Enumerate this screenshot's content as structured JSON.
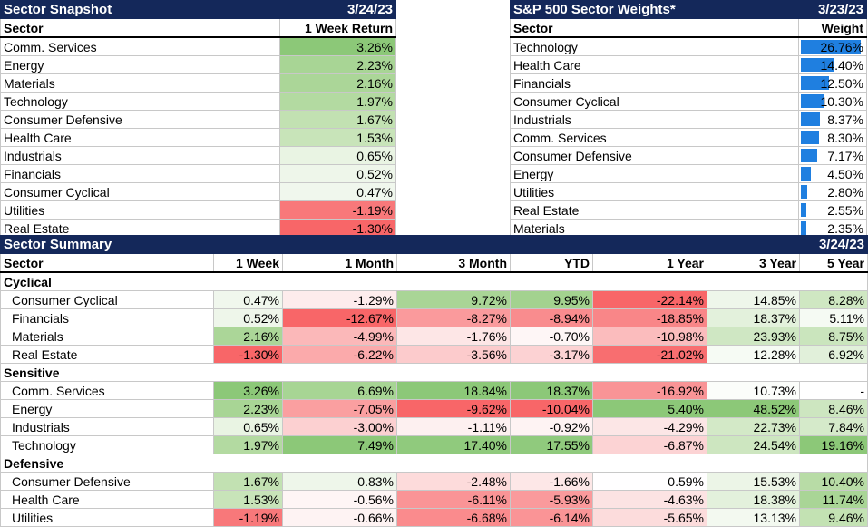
{
  "snapshot": {
    "title": "Sector Snapshot",
    "date": "3/24/23",
    "col_sector": "Sector",
    "col_return": "1 Week Return",
    "rows": [
      {
        "name": "Comm. Services",
        "value": "3.26%",
        "color": "#8cc878"
      },
      {
        "name": "Energy",
        "value": "2.23%",
        "color": "#a8d595"
      },
      {
        "name": "Materials",
        "value": "2.16%",
        "color": "#abd698"
      },
      {
        "name": "Technology",
        "value": "1.97%",
        "color": "#b3daa1"
      },
      {
        "name": "Consumer Defensive",
        "value": "1.67%",
        "color": "#c2e1b2"
      },
      {
        "name": "Health Care",
        "value": "1.53%",
        "color": "#c8e4b9"
      },
      {
        "name": "Industrials",
        "value": "0.65%",
        "color": "#e9f4e3"
      },
      {
        "name": "Financials",
        "value": "0.52%",
        "color": "#eef6ea"
      },
      {
        "name": "Consumer Cyclical",
        "value": "0.47%",
        "color": "#f0f7ed"
      },
      {
        "name": "Utilities",
        "value": "-1.19%",
        "color": "#f8787a"
      },
      {
        "name": "Real Estate",
        "value": "-1.30%",
        "color": "#f86668"
      }
    ]
  },
  "weights": {
    "title": "S&P 500 Sector Weights*",
    "date": "3/23/23",
    "col_sector": "Sector",
    "col_weight": "Weight",
    "bar_color": "#1f7fe0",
    "rows": [
      {
        "name": "Technology",
        "value": "26.76%",
        "pct": 26.76
      },
      {
        "name": "Health Care",
        "value": "14.40%",
        "pct": 14.4
      },
      {
        "name": "Financials",
        "value": "12.50%",
        "pct": 12.5
      },
      {
        "name": "Consumer Cyclical",
        "value": "10.30%",
        "pct": 10.3
      },
      {
        "name": "Industrials",
        "value": "8.37%",
        "pct": 8.37
      },
      {
        "name": "Comm. Services",
        "value": "8.30%",
        "pct": 8.3
      },
      {
        "name": "Consumer Defensive",
        "value": "7.17%",
        "pct": 7.17
      },
      {
        "name": "Energy",
        "value": "4.50%",
        "pct": 4.5
      },
      {
        "name": "Utilities",
        "value": "2.80%",
        "pct": 2.8
      },
      {
        "name": "Real Estate",
        "value": "2.55%",
        "pct": 2.55
      },
      {
        "name": "Materials",
        "value": "2.35%",
        "pct": 2.35
      }
    ]
  },
  "summary": {
    "title": "Sector Summary",
    "date": "3/24/23",
    "headers": [
      "Sector",
      "1 Week",
      "1 Month",
      "3 Month",
      "YTD",
      "1 Year",
      "3 Year",
      "5 Year"
    ],
    "groups": [
      {
        "name": "Cyclical",
        "rows": [
          {
            "name": "Consumer Cyclical",
            "cells": [
              {
                "v": "0.47%",
                "c": "#f0f7ed"
              },
              {
                "v": "-1.29%",
                "c": "#fdecec"
              },
              {
                "v": "9.72%",
                "c": "#a9d596"
              },
              {
                "v": "9.95%",
                "c": "#a3d28f"
              },
              {
                "v": "-22.14%",
                "c": "#f86668"
              },
              {
                "v": "14.85%",
                "c": "#eef6ea"
              },
              {
                "v": "8.28%",
                "c": "#cfe7c2"
              }
            ]
          },
          {
            "name": "Financials",
            "cells": [
              {
                "v": "0.52%",
                "c": "#eef6ea"
              },
              {
                "v": "-12.67%",
                "c": "#f86668"
              },
              {
                "v": "-8.27%",
                "c": "#fa9a9c"
              },
              {
                "v": "-8.94%",
                "c": "#f98c8e"
              },
              {
                "v": "-18.85%",
                "c": "#f98688"
              },
              {
                "v": "18.37%",
                "c": "#e3f1dc"
              },
              {
                "v": "5.11%",
                "c": "#f5faf3"
              }
            ]
          },
          {
            "name": "Materials",
            "cells": [
              {
                "v": "2.16%",
                "c": "#abd698"
              },
              {
                "v": "-4.99%",
                "c": "#fbb8b9"
              },
              {
                "v": "-1.76%",
                "c": "#fde6e6"
              },
              {
                "v": "-0.70%",
                "c": "#fef6f6"
              },
              {
                "v": "-10.98%",
                "c": "#fbbcbd"
              },
              {
                "v": "23.93%",
                "c": "#cfe7c3"
              },
              {
                "v": "8.75%",
                "c": "#cae5bd"
              }
            ]
          },
          {
            "name": "Real Estate",
            "cells": [
              {
                "v": "-1.30%",
                "c": "#f86668"
              },
              {
                "v": "-6.22%",
                "c": "#fbaaab"
              },
              {
                "v": "-3.56%",
                "c": "#fccbcc"
              },
              {
                "v": "-3.17%",
                "c": "#fcd2d3"
              },
              {
                "v": "-21.02%",
                "c": "#f86e70"
              },
              {
                "v": "12.28%",
                "c": "#f6fbf4"
              },
              {
                "v": "6.92%",
                "c": "#e1f0da"
              }
            ]
          }
        ]
      },
      {
        "name": "Sensitive",
        "rows": [
          {
            "name": "Comm. Services",
            "cells": [
              {
                "v": "3.26%",
                "c": "#8cc878"
              },
              {
                "v": "6.69%",
                "c": "#a7d594"
              },
              {
                "v": "18.84%",
                "c": "#8cc878"
              },
              {
                "v": "18.37%",
                "c": "#8cc878"
              },
              {
                "v": "-16.92%",
                "c": "#f99496"
              },
              {
                "v": "10.73%",
                "c": "#fbfdfa"
              },
              {
                "v": "-",
                "c": "#ffffff"
              }
            ]
          },
          {
            "name": "Energy",
            "cells": [
              {
                "v": "2.23%",
                "c": "#a8d595"
              },
              {
                "v": "-7.05%",
                "c": "#fa9fa0"
              },
              {
                "v": "-9.62%",
                "c": "#f86668"
              },
              {
                "v": "-10.04%",
                "c": "#f86668"
              },
              {
                "v": "5.40%",
                "c": "#8cc878"
              },
              {
                "v": "48.52%",
                "c": "#8cc878"
              },
              {
                "v": "8.46%",
                "c": "#cde6c0"
              }
            ]
          },
          {
            "name": "Industrials",
            "cells": [
              {
                "v": "0.65%",
                "c": "#e9f4e3"
              },
              {
                "v": "-3.00%",
                "c": "#fcd0d1"
              },
              {
                "v": "-1.11%",
                "c": "#fdf0f0"
              },
              {
                "v": "-0.92%",
                "c": "#fef3f3"
              },
              {
                "v": "-4.29%",
                "c": "#fce6e6"
              },
              {
                "v": "22.73%",
                "c": "#d3e9c7"
              },
              {
                "v": "7.84%",
                "c": "#d5eaca"
              }
            ]
          },
          {
            "name": "Technology",
            "cells": [
              {
                "v": "1.97%",
                "c": "#b3daa1"
              },
              {
                "v": "7.49%",
                "c": "#8cc878"
              },
              {
                "v": "17.40%",
                "c": "#90ca7d"
              },
              {
                "v": "17.55%",
                "c": "#90ca7d"
              },
              {
                "v": "-6.87%",
                "c": "#fcd3d4"
              },
              {
                "v": "24.54%",
                "c": "#cde6c0"
              },
              {
                "v": "19.16%",
                "c": "#8cc878"
              }
            ]
          }
        ]
      },
      {
        "name": "Defensive",
        "rows": [
          {
            "name": "Consumer Defensive",
            "cells": [
              {
                "v": "1.67%",
                "c": "#c2e1b2"
              },
              {
                "v": "0.83%",
                "c": "#eef6ea"
              },
              {
                "v": "-2.48%",
                "c": "#fddbdb"
              },
              {
                "v": "-1.66%",
                "c": "#fde7e7"
              },
              {
                "v": "0.59%",
                "c": "#fffeff"
              },
              {
                "v": "15.53%",
                "c": "#ecf5e7"
              },
              {
                "v": "10.40%",
                "c": "#b8dca6"
              }
            ]
          },
          {
            "name": "Health Care",
            "cells": [
              {
                "v": "1.53%",
                "c": "#c8e4b9"
              },
              {
                "v": "-0.56%",
                "c": "#fef5f5"
              },
              {
                "v": "-6.11%",
                "c": "#fa9496"
              },
              {
                "v": "-5.93%",
                "c": "#fa9a9c"
              },
              {
                "v": "-4.63%",
                "c": "#fce3e3"
              },
              {
                "v": "18.38%",
                "c": "#e3f1dc"
              },
              {
                "v": "11.74%",
                "c": "#a9d596"
              }
            ]
          },
          {
            "name": "Utilities",
            "cells": [
              {
                "v": "-1.19%",
                "c": "#f8787a"
              },
              {
                "v": "-0.66%",
                "c": "#fef3f3"
              },
              {
                "v": "-6.68%",
                "c": "#fa8b8d"
              },
              {
                "v": "-6.14%",
                "c": "#fa9496"
              },
              {
                "v": "-5.65%",
                "c": "#fcdcdc"
              },
              {
                "v": "13.13%",
                "c": "#f3f9f0"
              },
              {
                "v": "9.46%",
                "c": "#c3e2b3"
              }
            ]
          }
        ]
      }
    ]
  }
}
